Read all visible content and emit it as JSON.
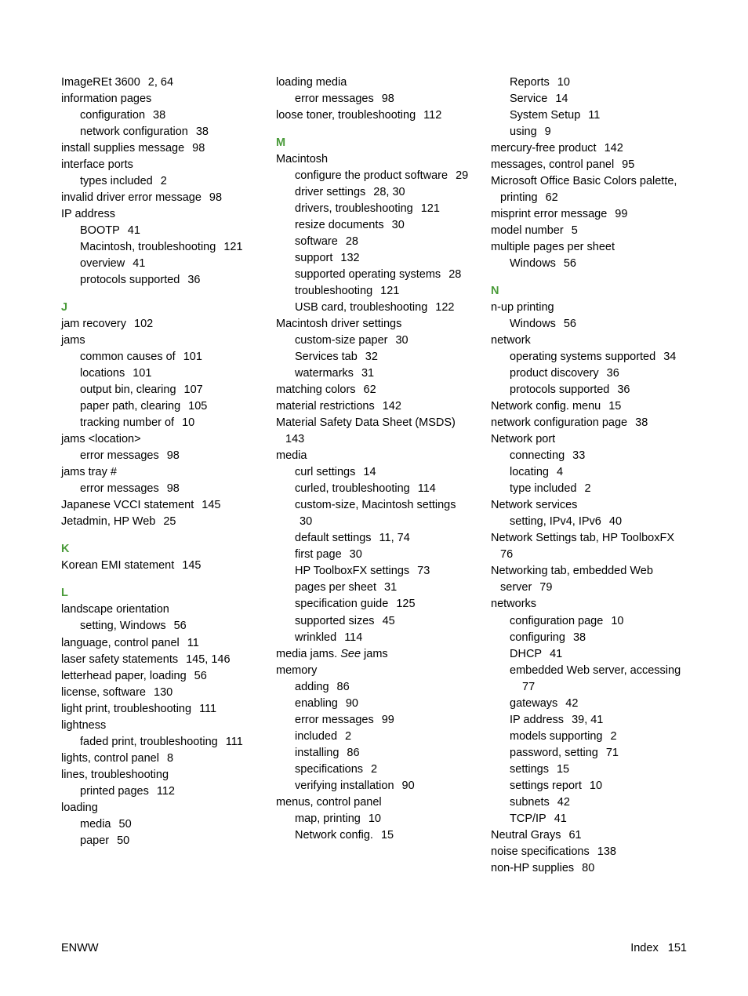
{
  "colors": {
    "section_head": "#4a9b3a",
    "text": "#000000",
    "background": "#ffffff"
  },
  "typography": {
    "font_family": "Arial, Helvetica, sans-serif",
    "font_size_pt": 11,
    "line_height": 1.45
  },
  "footer": {
    "left": "ENWW",
    "right_label": "Index",
    "right_page": "151"
  },
  "columns": [
    [
      {
        "t": "entry",
        "text": "ImageREt 3600",
        "pages": [
          "2",
          "64"
        ]
      },
      {
        "t": "entry",
        "text": "information pages"
      },
      {
        "t": "sub",
        "text": "configuration",
        "pages": [
          "38"
        ]
      },
      {
        "t": "sub",
        "text": "network configuration",
        "pages": [
          "38"
        ]
      },
      {
        "t": "entry",
        "text": "install supplies message",
        "pages": [
          "98"
        ]
      },
      {
        "t": "entry",
        "text": "interface ports"
      },
      {
        "t": "sub",
        "text": "types included",
        "pages": [
          "2"
        ]
      },
      {
        "t": "entry",
        "text": "invalid driver error message",
        "pages": [
          "98"
        ]
      },
      {
        "t": "entry",
        "text": "IP address"
      },
      {
        "t": "sub",
        "text": "BOOTP",
        "pages": [
          "41"
        ]
      },
      {
        "t": "sub",
        "text": "Macintosh, troubleshooting",
        "pages": [
          "121"
        ]
      },
      {
        "t": "sub",
        "text": "overview",
        "pages": [
          "41"
        ]
      },
      {
        "t": "sub",
        "text": "protocols supported",
        "pages": [
          "36"
        ]
      },
      {
        "t": "head",
        "text": "J"
      },
      {
        "t": "entry",
        "text": "jam recovery",
        "pages": [
          "102"
        ]
      },
      {
        "t": "entry",
        "text": "jams"
      },
      {
        "t": "sub",
        "text": "common causes of",
        "pages": [
          "101"
        ]
      },
      {
        "t": "sub",
        "text": "locations",
        "pages": [
          "101"
        ]
      },
      {
        "t": "sub",
        "text": "output bin, clearing",
        "pages": [
          "107"
        ]
      },
      {
        "t": "sub",
        "text": "paper path, clearing",
        "pages": [
          "105"
        ]
      },
      {
        "t": "sub",
        "text": "tracking number of",
        "pages": [
          "10"
        ]
      },
      {
        "t": "entry",
        "text": "jams <location>"
      },
      {
        "t": "sub",
        "text": "error messages",
        "pages": [
          "98"
        ]
      },
      {
        "t": "entry",
        "text": "jams tray #"
      },
      {
        "t": "sub",
        "text": "error messages",
        "pages": [
          "98"
        ]
      },
      {
        "t": "entry",
        "text": "Japanese VCCI statement",
        "pages": [
          "145"
        ]
      },
      {
        "t": "entry",
        "text": "Jetadmin, HP Web",
        "pages": [
          "25"
        ]
      },
      {
        "t": "head",
        "text": "K"
      },
      {
        "t": "entry",
        "text": "Korean EMI statement",
        "pages": [
          "145"
        ]
      },
      {
        "t": "head",
        "text": "L"
      },
      {
        "t": "entry",
        "text": "landscape orientation"
      },
      {
        "t": "sub",
        "text": "setting, Windows",
        "pages": [
          "56"
        ]
      },
      {
        "t": "entry",
        "text": "language, control panel",
        "pages": [
          "11"
        ]
      },
      {
        "t": "entry",
        "text": "laser safety statements",
        "pages": [
          "145",
          "146"
        ]
      },
      {
        "t": "entry",
        "text": "letterhead paper, loading",
        "pages": [
          "56"
        ]
      },
      {
        "t": "entry",
        "text": "license, software",
        "pages": [
          "130"
        ]
      },
      {
        "t": "entry",
        "text": "light print, troubleshooting",
        "pages": [
          "111"
        ]
      },
      {
        "t": "entry",
        "text": "lightness"
      },
      {
        "t": "sub",
        "text": "faded print, troubleshooting",
        "pages": [
          "111"
        ]
      },
      {
        "t": "entry",
        "text": "lights, control panel",
        "pages": [
          "8"
        ]
      },
      {
        "t": "entry",
        "text": "lines, troubleshooting"
      },
      {
        "t": "sub",
        "text": "printed pages",
        "pages": [
          "112"
        ]
      },
      {
        "t": "entry",
        "text": "loading"
      },
      {
        "t": "sub",
        "text": "media",
        "pages": [
          "50"
        ]
      },
      {
        "t": "sub",
        "text": "paper",
        "pages": [
          "50"
        ]
      }
    ],
    [
      {
        "t": "entry",
        "text": "loading media"
      },
      {
        "t": "sub",
        "text": "error messages",
        "pages": [
          "98"
        ]
      },
      {
        "t": "entry",
        "text": "loose toner, troubleshooting",
        "pages": [
          "112"
        ]
      },
      {
        "t": "head",
        "text": "M"
      },
      {
        "t": "entry",
        "text": "Macintosh"
      },
      {
        "t": "sub",
        "text": "configure the product software",
        "pages": [
          "29"
        ]
      },
      {
        "t": "sub",
        "text": "driver settings",
        "pages": [
          "28",
          "30"
        ]
      },
      {
        "t": "sub",
        "text": "drivers, troubleshooting",
        "pages": [
          "121"
        ]
      },
      {
        "t": "sub",
        "text": "resize documents",
        "pages": [
          "30"
        ]
      },
      {
        "t": "sub",
        "text": "software",
        "pages": [
          "28"
        ]
      },
      {
        "t": "sub",
        "text": "support",
        "pages": [
          "132"
        ]
      },
      {
        "t": "sub",
        "text": "supported operating systems",
        "pages": [
          "28"
        ]
      },
      {
        "t": "sub",
        "text": "troubleshooting",
        "pages": [
          "121"
        ]
      },
      {
        "t": "sub",
        "text": "USB card, troubleshooting",
        "pages": [
          "122"
        ]
      },
      {
        "t": "entry",
        "text": "Macintosh driver settings"
      },
      {
        "t": "sub",
        "text": "custom-size paper",
        "pages": [
          "30"
        ]
      },
      {
        "t": "sub",
        "text": "Services tab",
        "pages": [
          "32"
        ]
      },
      {
        "t": "sub",
        "text": "watermarks",
        "pages": [
          "31"
        ]
      },
      {
        "t": "entry",
        "text": "matching colors",
        "pages": [
          "62"
        ]
      },
      {
        "t": "entry",
        "text": "material restrictions",
        "pages": [
          "142"
        ]
      },
      {
        "t": "entry",
        "text": "Material Safety Data Sheet (MSDS)",
        "pages": [
          "143"
        ],
        "hang": true
      },
      {
        "t": "entry",
        "text": "media"
      },
      {
        "t": "sub",
        "text": "curl settings",
        "pages": [
          "14"
        ]
      },
      {
        "t": "sub",
        "text": "curled, troubleshooting",
        "pages": [
          "114"
        ]
      },
      {
        "t": "sub",
        "text": "custom-size, Macintosh settings",
        "pages": [
          "30"
        ]
      },
      {
        "t": "sub",
        "text": "default settings",
        "pages": [
          "11",
          "74"
        ]
      },
      {
        "t": "sub",
        "text": "first page",
        "pages": [
          "30"
        ]
      },
      {
        "t": "sub",
        "text": "HP ToolboxFX settings",
        "pages": [
          "73"
        ]
      },
      {
        "t": "sub",
        "text": "pages per sheet",
        "pages": [
          "31"
        ]
      },
      {
        "t": "sub",
        "text": "specification guide",
        "pages": [
          "125"
        ]
      },
      {
        "t": "sub",
        "text": "supported sizes",
        "pages": [
          "45"
        ]
      },
      {
        "t": "sub",
        "text": "wrinkled",
        "pages": [
          "114"
        ]
      },
      {
        "t": "entry",
        "html": "media jams. <em>See</em> jams"
      },
      {
        "t": "entry",
        "text": "memory"
      },
      {
        "t": "sub",
        "text": "adding",
        "pages": [
          "86"
        ]
      },
      {
        "t": "sub",
        "text": "enabling",
        "pages": [
          "90"
        ]
      },
      {
        "t": "sub",
        "text": "error messages",
        "pages": [
          "99"
        ]
      },
      {
        "t": "sub",
        "text": "included",
        "pages": [
          "2"
        ]
      },
      {
        "t": "sub",
        "text": "installing",
        "pages": [
          "86"
        ]
      },
      {
        "t": "sub",
        "text": "specifications",
        "pages": [
          "2"
        ]
      },
      {
        "t": "sub",
        "text": "verifying installation",
        "pages": [
          "90"
        ]
      },
      {
        "t": "entry",
        "text": "menus, control panel"
      },
      {
        "t": "sub",
        "text": "map, printing",
        "pages": [
          "10"
        ]
      },
      {
        "t": "sub",
        "text": "Network config.",
        "pages": [
          "15"
        ]
      }
    ],
    [
      {
        "t": "sub",
        "text": "Reports",
        "pages": [
          "10"
        ]
      },
      {
        "t": "sub",
        "text": "Service",
        "pages": [
          "14"
        ]
      },
      {
        "t": "sub",
        "text": "System Setup",
        "pages": [
          "11"
        ]
      },
      {
        "t": "sub",
        "text": "using",
        "pages": [
          "9"
        ]
      },
      {
        "t": "entry",
        "text": "mercury-free product",
        "pages": [
          "142"
        ]
      },
      {
        "t": "entry",
        "text": "messages, control panel",
        "pages": [
          "95"
        ]
      },
      {
        "t": "entry",
        "text": "Microsoft Office Basic Colors palette, printing",
        "pages": [
          "62"
        ],
        "hang": true
      },
      {
        "t": "entry",
        "text": "misprint error message",
        "pages": [
          "99"
        ]
      },
      {
        "t": "entry",
        "text": "model number",
        "pages": [
          "5"
        ]
      },
      {
        "t": "entry",
        "text": "multiple pages per sheet"
      },
      {
        "t": "sub",
        "text": "Windows",
        "pages": [
          "56"
        ]
      },
      {
        "t": "head",
        "text": "N"
      },
      {
        "t": "entry",
        "text": "n-up printing"
      },
      {
        "t": "sub",
        "text": "Windows",
        "pages": [
          "56"
        ]
      },
      {
        "t": "entry",
        "text": "network"
      },
      {
        "t": "sub",
        "text": "operating systems supported",
        "pages": [
          "34"
        ]
      },
      {
        "t": "sub",
        "text": "product discovery",
        "pages": [
          "36"
        ]
      },
      {
        "t": "sub",
        "text": "protocols supported",
        "pages": [
          "36"
        ]
      },
      {
        "t": "entry",
        "text": "Network config. menu",
        "pages": [
          "15"
        ]
      },
      {
        "t": "entry",
        "text": "network configuration page",
        "pages": [
          "38"
        ]
      },
      {
        "t": "entry",
        "text": "Network port"
      },
      {
        "t": "sub",
        "text": "connecting",
        "pages": [
          "33"
        ]
      },
      {
        "t": "sub",
        "text": "locating",
        "pages": [
          "4"
        ]
      },
      {
        "t": "sub",
        "text": "type included",
        "pages": [
          "2"
        ]
      },
      {
        "t": "entry",
        "text": "Network services"
      },
      {
        "t": "sub",
        "text": "setting, IPv4, IPv6",
        "pages": [
          "40"
        ]
      },
      {
        "t": "entry",
        "text": "Network Settings tab, HP ToolboxFX",
        "pages": [
          "76"
        ],
        "hang": true
      },
      {
        "t": "entry",
        "text": "Networking tab, embedded Web server",
        "pages": [
          "79"
        ],
        "hang": true
      },
      {
        "t": "entry",
        "text": "networks"
      },
      {
        "t": "sub",
        "text": "configuration page",
        "pages": [
          "10"
        ]
      },
      {
        "t": "sub",
        "text": "configuring",
        "pages": [
          "38"
        ]
      },
      {
        "t": "sub",
        "text": "DHCP",
        "pages": [
          "41"
        ]
      },
      {
        "t": "sub",
        "text": "embedded Web server, accessing",
        "pages": [
          "77"
        ]
      },
      {
        "t": "sub",
        "text": "gateways",
        "pages": [
          "42"
        ]
      },
      {
        "t": "sub",
        "text": "IP address",
        "pages": [
          "39",
          "41"
        ]
      },
      {
        "t": "sub",
        "text": "models supporting",
        "pages": [
          "2"
        ]
      },
      {
        "t": "sub",
        "text": "password, setting",
        "pages": [
          "71"
        ]
      },
      {
        "t": "sub",
        "text": "settings",
        "pages": [
          "15"
        ]
      },
      {
        "t": "sub",
        "text": "settings report",
        "pages": [
          "10"
        ]
      },
      {
        "t": "sub",
        "text": "subnets",
        "pages": [
          "42"
        ]
      },
      {
        "t": "sub",
        "text": "TCP/IP",
        "pages": [
          "41"
        ]
      },
      {
        "t": "entry",
        "text": "Neutral Grays",
        "pages": [
          "61"
        ]
      },
      {
        "t": "entry",
        "text": "noise specifications",
        "pages": [
          "138"
        ]
      },
      {
        "t": "entry",
        "text": "non-HP supplies",
        "pages": [
          "80"
        ]
      }
    ]
  ]
}
